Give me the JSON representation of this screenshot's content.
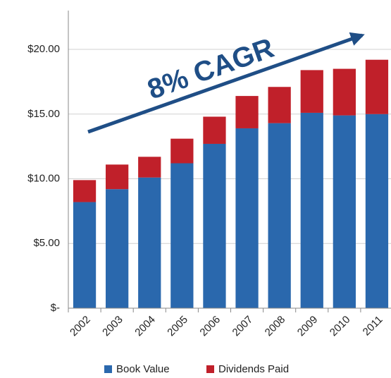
{
  "chart_data": {
    "type": "stacked_bar",
    "categories": [
      "2002",
      "2003",
      "2004",
      "2005",
      "2006",
      "2007",
      "2008",
      "2009",
      "2010",
      "2011"
    ],
    "series": [
      {
        "name": "Book Value",
        "color": "#2a68ad",
        "values": [
          8.2,
          9.2,
          10.1,
          11.2,
          12.7,
          13.9,
          14.3,
          15.1,
          14.9,
          15.0
        ]
      },
      {
        "name": "Dividends Paid",
        "color": "#c0202a",
        "values": [
          1.7,
          1.9,
          1.6,
          1.9,
          2.1,
          2.5,
          2.8,
          3.3,
          3.6,
          4.2
        ]
      }
    ],
    "ylim": [
      0,
      23
    ],
    "yticks": [
      {
        "value": 0,
        "label": "$-"
      },
      {
        "value": 5,
        "label": "$5.00"
      },
      {
        "value": 10,
        "label": "$10.00"
      },
      {
        "value": 15,
        "label": "$15.00"
      },
      {
        "value": 20,
        "label": "$20.00"
      }
    ],
    "grid": true,
    "annotation": "8% CAGR",
    "legend": "bottom"
  }
}
